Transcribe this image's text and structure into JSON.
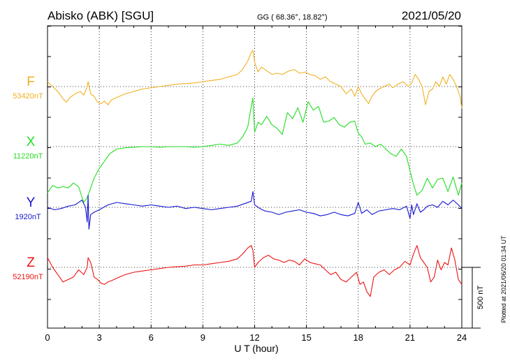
{
  "header": {
    "station": "Abisko (ABK)  [SGU]",
    "coords": "GG ( 68.36°,  18.82°)",
    "date": "2021/05/20"
  },
  "footer": {
    "plotted": "Plotted at 2021/06/20 01:34 UT"
  },
  "chart_data": {
    "type": "line",
    "xlabel": "U T (hour)",
    "xlim": [
      0,
      24
    ],
    "xticks": [
      0,
      3,
      6,
      9,
      12,
      15,
      18,
      21,
      24
    ],
    "grid": true,
    "scale_bar": {
      "label": "500 nT",
      "value_nT": 500
    },
    "components": [
      {
        "name": "F",
        "baseline_label": "53420nT",
        "baseline_nT": 53420,
        "color": "#f0b020",
        "x": [
          0,
          0.3,
          0.6,
          0.9,
          1.1,
          1.3,
          1.6,
          1.9,
          2.1,
          2.3,
          2.35,
          2.5,
          2.7,
          2.9,
          3.1,
          3.3,
          3.5,
          3.7,
          4,
          4.5,
          5,
          5.5,
          6,
          6.5,
          7,
          7.5,
          8,
          8.5,
          9,
          9.5,
          10,
          10.5,
          11,
          11.3,
          11.6,
          11.8,
          11.9,
          12,
          12.2,
          12.4,
          12.6,
          12.8,
          13,
          13.3,
          13.6,
          14,
          14.3,
          14.6,
          14.9,
          15.2,
          15.5,
          15.8,
          16.1,
          16.4,
          16.7,
          17,
          17.3,
          17.6,
          17.8,
          18,
          18.2,
          18.4,
          18.6,
          18.8,
          19,
          19.2,
          19.5,
          19.8,
          20,
          20.3,
          20.6,
          20.9,
          21.1,
          21.3,
          21.5,
          21.7,
          21.9,
          22.1,
          22.3,
          22.5,
          22.7,
          22.9,
          23.1,
          23.3,
          23.5,
          23.7,
          23.9,
          24
        ],
        "y": [
          40,
          0,
          -40,
          -100,
          -130,
          -90,
          -60,
          -40,
          -70,
          0,
          40,
          -60,
          -80,
          -130,
          -140,
          -120,
          -150,
          -110,
          -90,
          -60,
          -40,
          -20,
          -10,
          0,
          10,
          20,
          25,
          30,
          40,
          50,
          60,
          80,
          100,
          140,
          210,
          280,
          300,
          200,
          120,
          160,
          140,
          120,
          100,
          110,
          100,
          130,
          140,
          110,
          120,
          100,
          90,
          60,
          80,
          40,
          20,
          0,
          -60,
          -20,
          -80,
          0,
          -60,
          -100,
          -140,
          -80,
          -40,
          -20,
          0,
          20,
          -10,
          20,
          40,
          0,
          30,
          100,
          60,
          0,
          -150,
          -40,
          -20,
          40,
          0,
          80,
          20,
          100,
          60,
          0,
          -80,
          -180
        ]
      },
      {
        "name": "X",
        "baseline_label": "11220nT",
        "baseline_nT": 11220,
        "color": "#22dd22",
        "x": [
          0,
          0.3,
          0.6,
          0.9,
          1.2,
          1.5,
          1.8,
          2.1,
          2.3,
          2.5,
          2.7,
          3,
          3.3,
          3.6,
          4,
          4.5,
          5,
          5.5,
          6,
          6.5,
          7,
          7.5,
          8,
          8.5,
          9,
          9.5,
          10,
          10.5,
          11,
          11.3,
          11.6,
          11.8,
          11.9,
          12,
          12.2,
          12.4,
          12.7,
          13,
          13.3,
          13.6,
          13.9,
          14.2,
          14.5,
          14.8,
          15.1,
          15.4,
          15.7,
          16,
          16.3,
          16.6,
          16.9,
          17.2,
          17.5,
          17.8,
          18,
          18.2,
          18.4,
          18.7,
          19,
          19.3,
          19.6,
          19.9,
          20.2,
          20.5,
          20.8,
          21,
          21.2,
          21.4,
          21.7,
          22,
          22.3,
          22.6,
          22.9,
          23.2,
          23.5,
          23.8,
          24
        ],
        "y": [
          -380,
          -320,
          -340,
          -330,
          -340,
          -300,
          -330,
          -460,
          -420,
          -340,
          -260,
          -180,
          -120,
          -60,
          -20,
          -10,
          -5,
          0,
          0,
          -5,
          0,
          0,
          0,
          -5,
          0,
          10,
          20,
          10,
          30,
          80,
          160,
          330,
          400,
          120,
          200,
          180,
          250,
          180,
          150,
          100,
          280,
          230,
          320,
          200,
          370,
          300,
          330,
          200,
          210,
          240,
          180,
          160,
          200,
          210,
          110,
          80,
          20,
          30,
          0,
          20,
          -20,
          -60,
          -80,
          -20,
          -80,
          -200,
          -310,
          -400,
          -360,
          -260,
          -340,
          -270,
          -260,
          -370,
          -250,
          -400,
          -300
        ]
      },
      {
        "name": "Y",
        "baseline_label": "1920nT",
        "baseline_nT": 1920,
        "color": "#1515d0",
        "x": [
          0,
          0.4,
          0.8,
          1.2,
          1.6,
          2,
          2.2,
          2.3,
          2.35,
          2.4,
          2.5,
          2.7,
          3,
          3.5,
          4,
          4.5,
          5,
          5.5,
          6,
          6.5,
          7,
          7.5,
          8,
          8.5,
          9,
          9.5,
          10,
          10.5,
          11,
          11.4,
          11.8,
          11.9,
          12,
          12.3,
          12.6,
          13,
          13.4,
          13.8,
          14.2,
          14.6,
          15,
          15.4,
          15.8,
          16.2,
          16.6,
          17,
          17.4,
          17.8,
          18,
          18.2,
          18.5,
          18.8,
          19.2,
          19.6,
          20,
          20.4,
          20.8,
          21,
          21.1,
          21.2,
          21.4,
          21.6,
          21.8,
          22,
          22.3,
          22.6,
          22.9,
          23.2,
          23.5,
          23.8,
          24
        ],
        "y": [
          0,
          -20,
          -10,
          10,
          20,
          60,
          0,
          -120,
          100,
          -180,
          -60,
          -40,
          -20,
          20,
          40,
          30,
          20,
          10,
          20,
          10,
          0,
          10,
          -10,
          0,
          -10,
          -20,
          -10,
          0,
          10,
          30,
          50,
          130,
          20,
          -10,
          -30,
          -40,
          -60,
          -40,
          -30,
          -20,
          -40,
          -50,
          -70,
          -60,
          -40,
          -60,
          -70,
          -50,
          40,
          -50,
          -20,
          -60,
          -30,
          -20,
          -10,
          -20,
          10,
          -90,
          20,
          -60,
          30,
          -40,
          -20,
          10,
          20,
          0,
          50,
          20,
          60,
          20,
          -10
        ]
      },
      {
        "name": "Z",
        "baseline_label": "52190nT",
        "baseline_nT": 52190,
        "color": "#ee1111",
        "x": [
          0,
          0.3,
          0.6,
          0.9,
          1.2,
          1.5,
          1.8,
          2.1,
          2.3,
          2.35,
          2.5,
          2.7,
          2.9,
          3.1,
          3.3,
          3.5,
          3.7,
          4,
          4.5,
          5,
          5.5,
          6,
          6.5,
          7,
          7.5,
          8,
          8.5,
          9,
          9.5,
          10,
          10.5,
          11,
          11.3,
          11.6,
          11.8,
          11.9,
          12,
          12.2,
          12.5,
          12.8,
          13.1,
          13.4,
          13.7,
          14,
          14.3,
          14.6,
          14.9,
          15.2,
          15.5,
          15.8,
          16.1,
          16.4,
          16.7,
          17,
          17.3,
          17.6,
          17.9,
          18.1,
          18.3,
          18.5,
          18.7,
          18.9,
          19.2,
          19.5,
          19.8,
          20.1,
          20.4,
          20.7,
          21,
          21.2,
          21.4,
          21.6,
          21.8,
          22,
          22.2,
          22.4,
          22.6,
          22.8,
          23,
          23.2,
          23.4,
          23.6,
          23.8,
          24
        ],
        "y": [
          80,
          0,
          -60,
          -120,
          -100,
          -80,
          -20,
          -60,
          0,
          80,
          40,
          -80,
          -100,
          -130,
          -140,
          -120,
          -110,
          -90,
          -60,
          -40,
          -30,
          -20,
          -10,
          0,
          5,
          10,
          20,
          20,
          30,
          40,
          50,
          70,
          110,
          160,
          180,
          140,
          0,
          40,
          80,
          100,
          70,
          60,
          40,
          60,
          50,
          20,
          70,
          40,
          30,
          20,
          -20,
          -60,
          -40,
          -100,
          -120,
          -80,
          -40,
          -140,
          -120,
          -200,
          -240,
          -80,
          -40,
          -20,
          -60,
          -20,
          0,
          50,
          20,
          110,
          180,
          80,
          40,
          0,
          -120,
          -80,
          60,
          -20,
          40,
          20,
          160,
          60,
          -100,
          -140
        ]
      }
    ]
  }
}
